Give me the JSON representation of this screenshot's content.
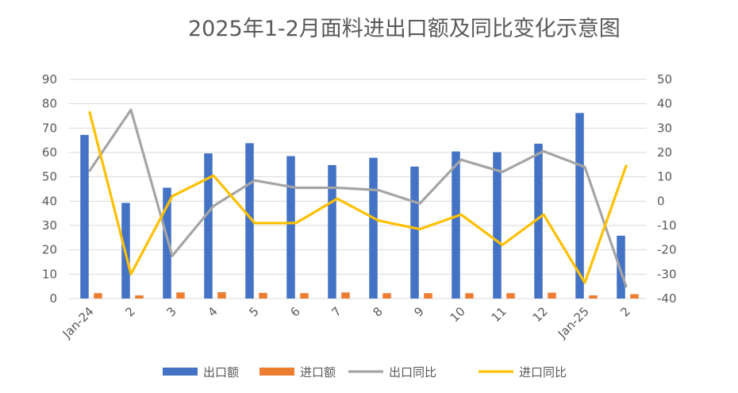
{
  "chart_data": {
    "type": "bar",
    "title": "2025年1-2月面料进出口额及同比变化示意图",
    "categories": [
      "Jan-24",
      "2",
      "3",
      "4",
      "5",
      "6",
      "7",
      "8",
      "9",
      "10",
      "11",
      "12",
      "Jan-25",
      "2"
    ],
    "y_left": {
      "ylim": [
        0,
        90
      ],
      "ticks": [
        0,
        10,
        20,
        30,
        40,
        50,
        60,
        70,
        80,
        90
      ]
    },
    "y_right": {
      "ylim": [
        -40,
        50
      ],
      "ticks": [
        -40,
        -30,
        -20,
        -10,
        0,
        10,
        20,
        30,
        40,
        50
      ]
    },
    "grid": true,
    "legend_position": "bottom",
    "series": [
      {
        "name": "出口额",
        "type": "bar",
        "axis": "left",
        "color": "#4472C4",
        "values": [
          67.2,
          39.3,
          45.5,
          59.6,
          63.8,
          58.5,
          54.8,
          57.8,
          54.2,
          60.4,
          60.1,
          63.6,
          76.2,
          25.8
        ]
      },
      {
        "name": "进口额",
        "type": "bar",
        "axis": "left",
        "color": "#ED7D31",
        "values": [
          2.2,
          1.3,
          2.5,
          2.6,
          2.3,
          2.2,
          2.5,
          2.2,
          2.2,
          2.2,
          2.2,
          2.4,
          1.3,
          1.8
        ]
      },
      {
        "name": "出口同比",
        "type": "line",
        "axis": "right",
        "color": "#A5A5A5",
        "values": [
          12.5,
          37.5,
          -22.5,
          -2.0,
          8.5,
          5.5,
          5.5,
          4.5,
          -1.0,
          17.0,
          12.0,
          20.5,
          14.0,
          -35.0
        ]
      },
      {
        "name": "进口同比",
        "type": "line",
        "axis": "right",
        "color": "#FFC000",
        "values": [
          36.5,
          -30.0,
          2.0,
          10.5,
          -9.0,
          -9.0,
          1.0,
          -8.0,
          -11.5,
          -5.5,
          -18.0,
          -5.5,
          -33.5,
          14.5
        ]
      }
    ]
  }
}
